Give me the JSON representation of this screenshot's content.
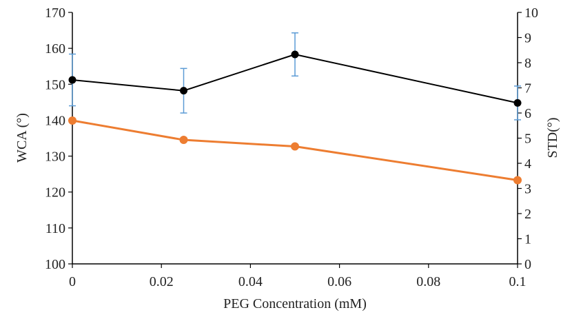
{
  "chart_data": {
    "type": "line",
    "xlabel": "PEG Concentration (mM)",
    "ylabel": "WCA (°)",
    "y2label": "STD(°)",
    "xlim": [
      0,
      0.1
    ],
    "ylim": [
      100,
      170
    ],
    "y2lim": [
      0,
      10
    ],
    "x_ticks": [
      "0",
      "0.02",
      "0.04",
      "0.06",
      "0.08",
      "0.1"
    ],
    "y_ticks": [
      "100",
      "110",
      "120",
      "130",
      "140",
      "150",
      "160",
      "170"
    ],
    "y2_ticks": [
      "0",
      "1",
      "2",
      "3",
      "4",
      "5",
      "6",
      "7",
      "8",
      "9",
      "10"
    ],
    "grid": false,
    "legend": "none",
    "series": [
      {
        "axis": "left",
        "color": "#000000",
        "x": [
          0,
          0.025,
          0.05,
          0.1
        ],
        "y": [
          151.2,
          148.2,
          158.3,
          144.8
        ],
        "error": [
          7.2,
          6.2,
          6.0,
          4.7
        ]
      },
      {
        "axis": "right",
        "color": "#ED7D31",
        "x": [
          0,
          0.025,
          0.05,
          0.1
        ],
        "y": [
          5.7,
          4.93,
          4.67,
          3.33
        ]
      }
    ],
    "error_bar_color": "#5B9BD5"
  }
}
